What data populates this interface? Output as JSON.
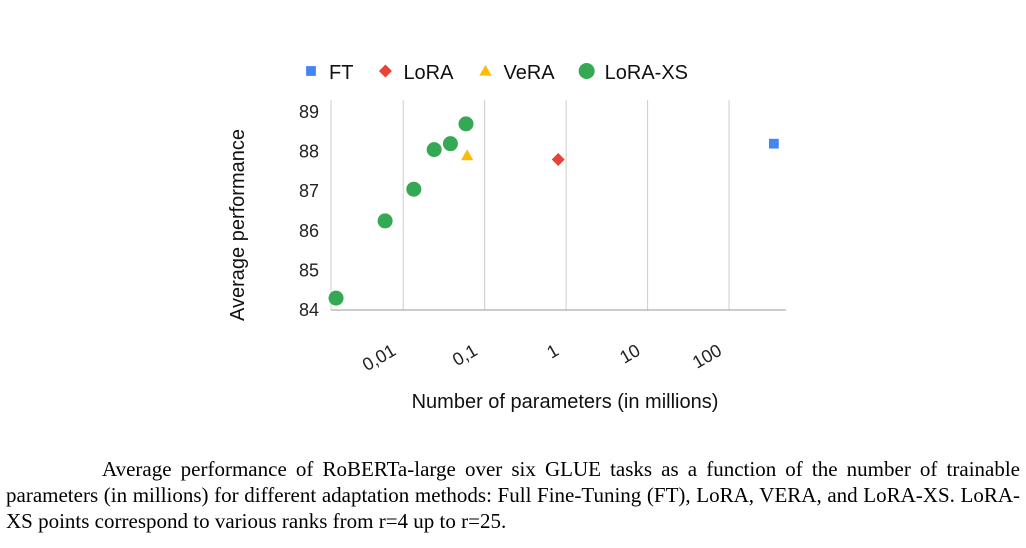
{
  "chart_data": {
    "type": "scatter",
    "xlabel": "Number of parameters (in millions)",
    "ylabel": "Average performance",
    "x_scale": "log",
    "xlim": [
      0.0013,
      500
    ],
    "ylim": [
      84,
      89
    ],
    "x_ticks": [
      {
        "value": 0.01,
        "label": "0,01"
      },
      {
        "value": 0.1,
        "label": "0,1"
      },
      {
        "value": 1,
        "label": "1"
      },
      {
        "value": 10,
        "label": "10"
      },
      {
        "value": 100,
        "label": "100"
      }
    ],
    "y_ticks": [
      84,
      85,
      86,
      87,
      88,
      89
    ],
    "grid": "vertical",
    "legend_position": "top",
    "series": [
      {
        "name": "FT",
        "marker": "square",
        "color": "#4285F4",
        "points": [
          {
            "x": 355,
            "y": 88.2
          }
        ]
      },
      {
        "name": "LoRA",
        "marker": "diamond",
        "color": "#EA4335",
        "points": [
          {
            "x": 0.8,
            "y": 87.8
          }
        ]
      },
      {
        "name": "VeRA",
        "marker": "triangle",
        "color": "#FBBC04",
        "points": [
          {
            "x": 0.061,
            "y": 87.9
          }
        ]
      },
      {
        "name": "LoRA-XS",
        "marker": "circle",
        "color": "#34A853",
        "points": [
          {
            "x": 0.0015,
            "y": 84.3
          },
          {
            "x": 0.006,
            "y": 86.25
          },
          {
            "x": 0.0135,
            "y": 87.05
          },
          {
            "x": 0.024,
            "y": 88.05
          },
          {
            "x": 0.038,
            "y": 88.2
          },
          {
            "x": 0.059,
            "y": 88.7
          }
        ]
      }
    ]
  },
  "caption": "Average performance of RoBERTa-large over six GLUE tasks as a function of the number of trainable parameters (in millions) for different adaptation methods: Full Fine-Tuning (FT), LoRA, VERA, and LoRA-XS. LoRA-XS points correspond to various ranks from r=4 up to r=25."
}
